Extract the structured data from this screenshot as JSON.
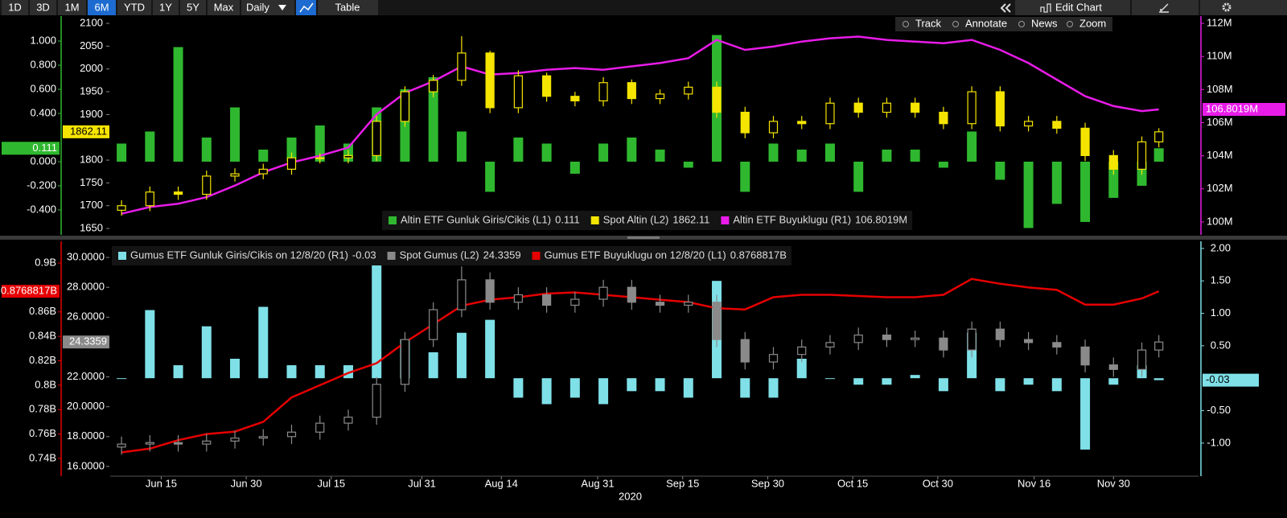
{
  "toolbar": {
    "ranges": [
      "1D",
      "3D",
      "1M",
      "6M",
      "YTD",
      "1Y",
      "5Y",
      "Max"
    ],
    "selected_range": 3,
    "frequency": "Daily",
    "table": "Table",
    "edit": "Edit Chart",
    "tools": [
      "Track",
      "Annotate",
      "News",
      "Zoom"
    ]
  },
  "chart_data": [
    {
      "type": "combo",
      "x": [
        "2020-06-08",
        "2020-06-13",
        "2020-06-18",
        "2020-06-23",
        "2020-06-28",
        "2020-07-03",
        "2020-07-08",
        "2020-07-13",
        "2020-07-18",
        "2020-07-23",
        "2020-07-28",
        "2020-08-02",
        "2020-08-07",
        "2020-08-12",
        "2020-08-17",
        "2020-08-22",
        "2020-08-27",
        "2020-09-01",
        "2020-09-06",
        "2020-09-11",
        "2020-09-16",
        "2020-09-21",
        "2020-09-26",
        "2020-10-01",
        "2020-10-06",
        "2020-10-11",
        "2020-10-16",
        "2020-10-21",
        "2020-10-26",
        "2020-10-31",
        "2020-11-05",
        "2020-11-10",
        "2020-11-15",
        "2020-11-20",
        "2020-11-25",
        "2020-11-30",
        "2020-12-05",
        "2020-12-08"
      ],
      "xlim": [
        "2020-06-06",
        "2020-12-15"
      ],
      "ylim": [
        -0.607,
        1.207
      ],
      "yticks": [
        {
          "value": 1.0,
          "label": "1.000"
        },
        {
          "value": 0.8,
          "label": "0.800"
        },
        {
          "value": 0.6,
          "label": "0.600"
        },
        {
          "value": 0.4,
          "label": "0.400"
        },
        {
          "value": 0.0,
          "label": "0.000"
        },
        {
          "value": -0.2,
          "label": "-0.200"
        },
        {
          "value": -0.4,
          "label": "-0.400"
        }
      ],
      "y2lim": [
        1636,
        2116
      ],
      "y2ticks": [
        1650,
        1700,
        1750,
        1800,
        1900,
        1950,
        2000,
        2050,
        2100
      ],
      "y3lim": [
        99.22,
        112.44
      ],
      "y3ticks": [
        {
          "value": 100,
          "label": "100M"
        },
        {
          "value": 102,
          "label": "102M"
        },
        {
          "value": 104,
          "label": "104M"
        },
        {
          "value": 106,
          "label": "106M"
        },
        {
          "value": 108,
          "label": "108M"
        },
        {
          "value": 110,
          "label": "110M"
        },
        {
          "value": 112,
          "label": "112M"
        }
      ],
      "series": [
        {
          "name": "Altin ETF Gunluk Giris/Cikis (L1)",
          "type": "bar",
          "axis": "y",
          "color": "#2fb82f",
          "values": [
            0.15,
            0.25,
            0.95,
            0.2,
            0.45,
            0.1,
            0.2,
            0.3,
            0.15,
            0.45,
            0.6,
            0.7,
            0.25,
            -0.25,
            0.2,
            0.15,
            -0.1,
            0.15,
            0.2,
            0.1,
            -0.05,
            1.05,
            -0.25,
            0.15,
            0.1,
            0.15,
            -0.25,
            0.1,
            0.1,
            -0.05,
            0.25,
            -0.15,
            -0.55,
            -0.35,
            -0.5,
            -0.3,
            -0.2,
            0.111
          ]
        },
        {
          "name": "Spot Altin (L2)",
          "type": "candlestick",
          "axis": "y2",
          "color": "#f5e400",
          "open": [
            1690,
            1700,
            1730,
            1725,
            1765,
            1770,
            1780,
            1805,
            1805,
            1810,
            1885,
            1950,
            1975,
            2035,
            1915,
            1985,
            1940,
            1930,
            1970,
            1935,
            1945,
            1960,
            1905,
            1860,
            1885,
            1880,
            1925,
            1905,
            1925,
            1905,
            1880,
            1950,
            1875,
            1885,
            1870,
            1810,
            1780,
            1840
          ],
          "high": [
            1712,
            1742,
            1742,
            1777,
            1782,
            1792,
            1817,
            1815,
            1822,
            1897,
            1962,
            1987,
            2072,
            2040,
            1997,
            1992,
            1950,
            1982,
            1977,
            1955,
            1972,
            1972,
            1917,
            1897,
            1897,
            1937,
            1937,
            1937,
            1937,
            1917,
            1962,
            1962,
            1897,
            1897,
            1882,
            1822,
            1852,
            1870
          ],
          "low": [
            1678,
            1688,
            1713,
            1713,
            1753,
            1758,
            1768,
            1793,
            1793,
            1798,
            1873,
            1938,
            1963,
            1903,
            1903,
            1928,
            1918,
            1918,
            1923,
            1923,
            1933,
            1893,
            1848,
            1848,
            1868,
            1868,
            1893,
            1893,
            1893,
            1868,
            1868,
            1863,
            1863,
            1858,
            1798,
            1768,
            1768,
            1828
          ],
          "close": [
            1700,
            1730,
            1725,
            1765,
            1770,
            1780,
            1805,
            1805,
            1810,
            1885,
            1950,
            1975,
            2035,
            1915,
            1985,
            1940,
            1930,
            1970,
            1935,
            1945,
            1960,
            1905,
            1860,
            1885,
            1880,
            1925,
            1905,
            1925,
            1905,
            1880,
            1950,
            1875,
            1885,
            1870,
            1810,
            1780,
            1840,
            1862.11
          ]
        },
        {
          "name": "Altin ETF Buyuklugu (R1)",
          "type": "line",
          "axis": "y3",
          "color": "#e81ce8",
          "last_label": "106.8019M",
          "values": [
            100.5,
            100.9,
            101.1,
            101.5,
            102.2,
            103.0,
            103.6,
            104.0,
            104.5,
            106.5,
            107.8,
            108.5,
            109.4,
            108.9,
            109.0,
            109.2,
            109.3,
            109.2,
            109.4,
            109.6,
            109.9,
            111.0,
            110.4,
            110.6,
            110.9,
            111.1,
            111.2,
            111.0,
            110.9,
            110.8,
            111.0,
            110.4,
            109.6,
            108.6,
            107.6,
            107.0,
            106.7,
            106.8019
          ]
        }
      ]
    },
    {
      "type": "combo",
      "x": [
        "2020-06-08",
        "2020-06-13",
        "2020-06-18",
        "2020-06-23",
        "2020-06-28",
        "2020-07-03",
        "2020-07-08",
        "2020-07-13",
        "2020-07-18",
        "2020-07-23",
        "2020-07-28",
        "2020-08-02",
        "2020-08-07",
        "2020-08-12",
        "2020-08-17",
        "2020-08-22",
        "2020-08-27",
        "2020-09-01",
        "2020-09-06",
        "2020-09-11",
        "2020-09-16",
        "2020-09-21",
        "2020-09-26",
        "2020-10-01",
        "2020-10-06",
        "2020-10-11",
        "2020-10-16",
        "2020-10-21",
        "2020-10-26",
        "2020-10-31",
        "2020-11-05",
        "2020-11-10",
        "2020-11-15",
        "2020-11-20",
        "2020-11-25",
        "2020-11-30",
        "2020-12-05",
        "2020-12-08"
      ],
      "xlim": [
        "2020-06-06",
        "2020-12-15"
      ],
      "xticks": [
        {
          "value": "2020-06-15",
          "label": "Jun 15"
        },
        {
          "value": "2020-06-30",
          "label": "Jun 30"
        },
        {
          "value": "2020-07-15",
          "label": "Jul 15"
        },
        {
          "value": "2020-07-31",
          "label": "Jul 31"
        },
        {
          "value": "2020-08-14",
          "label": "Aug 14"
        },
        {
          "value": "2020-08-31",
          "label": "Aug 31"
        },
        {
          "value": "2020-09-15",
          "label": "Sep 15"
        },
        {
          "value": "2020-09-30",
          "label": "Sep 30"
        },
        {
          "value": "2020-10-15",
          "label": "Oct 15"
        },
        {
          "value": "2020-10-30",
          "label": "Oct 30"
        },
        {
          "value": "2020-11-16",
          "label": "Nov 16"
        },
        {
          "value": "2020-11-30",
          "label": "Nov 30"
        }
      ],
      "xlabel": "2020",
      "ylim": [
        0.7255,
        0.9178
      ],
      "yticks": [
        {
          "value": 0.9,
          "label": "0.9B"
        },
        {
          "value": 0.86,
          "label": "0.86B"
        },
        {
          "value": 0.84,
          "label": "0.84B"
        },
        {
          "value": 0.82,
          "label": "0.82B"
        },
        {
          "value": 0.8,
          "label": "0.8B"
        },
        {
          "value": 0.78,
          "label": "0.78B"
        },
        {
          "value": 0.76,
          "label": "0.76B"
        },
        {
          "value": 0.74,
          "label": "0.74B"
        }
      ],
      "y2lim": [
        15.35,
        31.08
      ],
      "y2ticks": [
        {
          "value": 30,
          "label": "30.0000"
        },
        {
          "value": 28,
          "label": "28.0000"
        },
        {
          "value": 26,
          "label": "26.0000"
        },
        {
          "value": 22,
          "label": "22.0000"
        },
        {
          "value": 20,
          "label": "20.0000"
        },
        {
          "value": 18,
          "label": "18.0000"
        },
        {
          "value": 16,
          "label": "16.0000"
        }
      ],
      "y3lim": [
        -1.51,
        2.11
      ],
      "y3ticks": [
        {
          "value": 2,
          "label": "2.00"
        },
        {
          "value": 1.5,
          "label": "1.50"
        },
        {
          "value": 1,
          "label": "1.00"
        },
        {
          "value": 0.5,
          "label": "0.50"
        },
        {
          "value": -0.5,
          "label": "-0.50"
        },
        {
          "value": -1,
          "label": "-1.00"
        }
      ],
      "series": [
        {
          "name": "Gumus ETF Gunluk Giris/Cikis on 12/8/20 (R1)",
          "type": "bar",
          "axis": "y3",
          "color": "#7fe0e8",
          "values": [
            0.0,
            1.05,
            0.2,
            0.8,
            0.3,
            1.1,
            0.2,
            0.2,
            0.2,
            1.9,
            0.6,
            0.4,
            0.7,
            0.9,
            -0.3,
            -0.4,
            -0.3,
            -0.4,
            -0.2,
            -0.2,
            -0.3,
            1.5,
            -0.3,
            -0.3,
            0.3,
            0.0,
            -0.1,
            -0.1,
            0.05,
            -0.2,
            0.7,
            -0.2,
            -0.1,
            -0.2,
            -1.1,
            -0.1,
            0.2,
            -0.03
          ]
        },
        {
          "name": "Spot Gumus (L2)",
          "type": "candlestick",
          "axis": "y2",
          "color": "#8a8a8a",
          "open": [
            17.3,
            17.5,
            17.6,
            17.5,
            17.7,
            17.9,
            18.0,
            18.3,
            18.9,
            19.3,
            21.5,
            24.5,
            26.5,
            28.5,
            27.0,
            27.5,
            26.8,
            27.2,
            28.0,
            27.0,
            26.8,
            27.0,
            24.5,
            23.0,
            23.5,
            24.0,
            24.3,
            24.8,
            24.5,
            24.6,
            23.8,
            25.2,
            24.5,
            24.3,
            24.0,
            22.8,
            22.5,
            23.8
          ],
          "high": [
            18.0,
            18.1,
            18.1,
            18.2,
            18.4,
            18.5,
            18.8,
            19.4,
            19.8,
            22.0,
            25.0,
            27.0,
            29.4,
            29.0,
            28.0,
            28.0,
            27.7,
            28.5,
            28.5,
            27.5,
            27.5,
            27.5,
            25.0,
            24.0,
            24.5,
            24.8,
            25.3,
            25.3,
            25.1,
            25.1,
            25.7,
            25.7,
            25.0,
            24.8,
            24.5,
            23.3,
            24.3,
            24.8
          ],
          "low": [
            16.8,
            17.0,
            17.0,
            17.0,
            17.2,
            17.4,
            17.5,
            17.8,
            18.4,
            18.8,
            21.0,
            24.0,
            26.0,
            26.5,
            26.5,
            26.3,
            26.3,
            26.7,
            26.5,
            26.3,
            26.3,
            24.0,
            22.5,
            22.5,
            23.0,
            23.5,
            23.8,
            24.0,
            24.0,
            23.3,
            23.3,
            24.0,
            23.8,
            23.5,
            22.3,
            22.0,
            22.0,
            23.3
          ],
          "close": [
            17.5,
            17.6,
            17.5,
            17.7,
            17.9,
            18.0,
            18.3,
            18.9,
            19.3,
            21.5,
            24.5,
            26.5,
            28.5,
            27.0,
            27.5,
            26.8,
            27.2,
            28.0,
            27.0,
            26.8,
            27.0,
            24.5,
            23.0,
            23.5,
            24.0,
            24.3,
            24.8,
            24.5,
            24.6,
            23.8,
            25.2,
            24.5,
            24.3,
            24.0,
            22.8,
            22.5,
            23.8,
            24.3359
          ]
        },
        {
          "name": "Gumus ETF Buyuklugu on 12/8/20 (L1)",
          "type": "line",
          "axis": "y",
          "color": "#e60000",
          "last_label": "0.8768817B",
          "values": [
            0.745,
            0.748,
            0.755,
            0.76,
            0.762,
            0.77,
            0.79,
            0.8,
            0.81,
            0.818,
            0.835,
            0.85,
            0.865,
            0.87,
            0.872,
            0.875,
            0.876,
            0.874,
            0.872,
            0.87,
            0.868,
            0.863,
            0.862,
            0.872,
            0.874,
            0.874,
            0.873,
            0.872,
            0.872,
            0.874,
            0.887,
            0.883,
            0.88,
            0.878,
            0.866,
            0.866,
            0.871,
            0.8768817
          ]
        }
      ]
    }
  ]
}
